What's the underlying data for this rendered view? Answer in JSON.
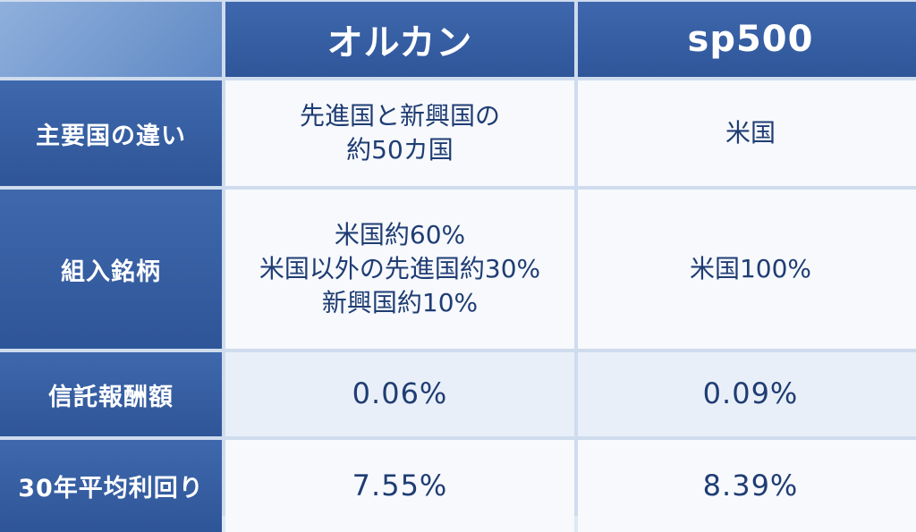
{
  "header": {
    "col1": "オルカン",
    "col2": "sp500"
  },
  "rows": [
    {
      "label": "主要国の違い",
      "col1_lines": [
        "先進国と新興国の",
        "約50カ国"
      ],
      "col2": "米国"
    },
    {
      "label": "組入銘柄",
      "col1_lines": [
        "米国約60%",
        "米国以外の先進国約30%",
        "新興国約10%"
      ],
      "col2": "米国100%"
    },
    {
      "label": "信託報酬額",
      "col1": "0.06%",
      "col2": "0.09%"
    },
    {
      "label": "30年平均利回り",
      "col1": "7.55%",
      "col2": "8.39%"
    }
  ],
  "colors": {
    "header_blue": "#34599e",
    "cell_bg": "#f7f9fd",
    "text_dark_blue": "#1f3d73"
  }
}
